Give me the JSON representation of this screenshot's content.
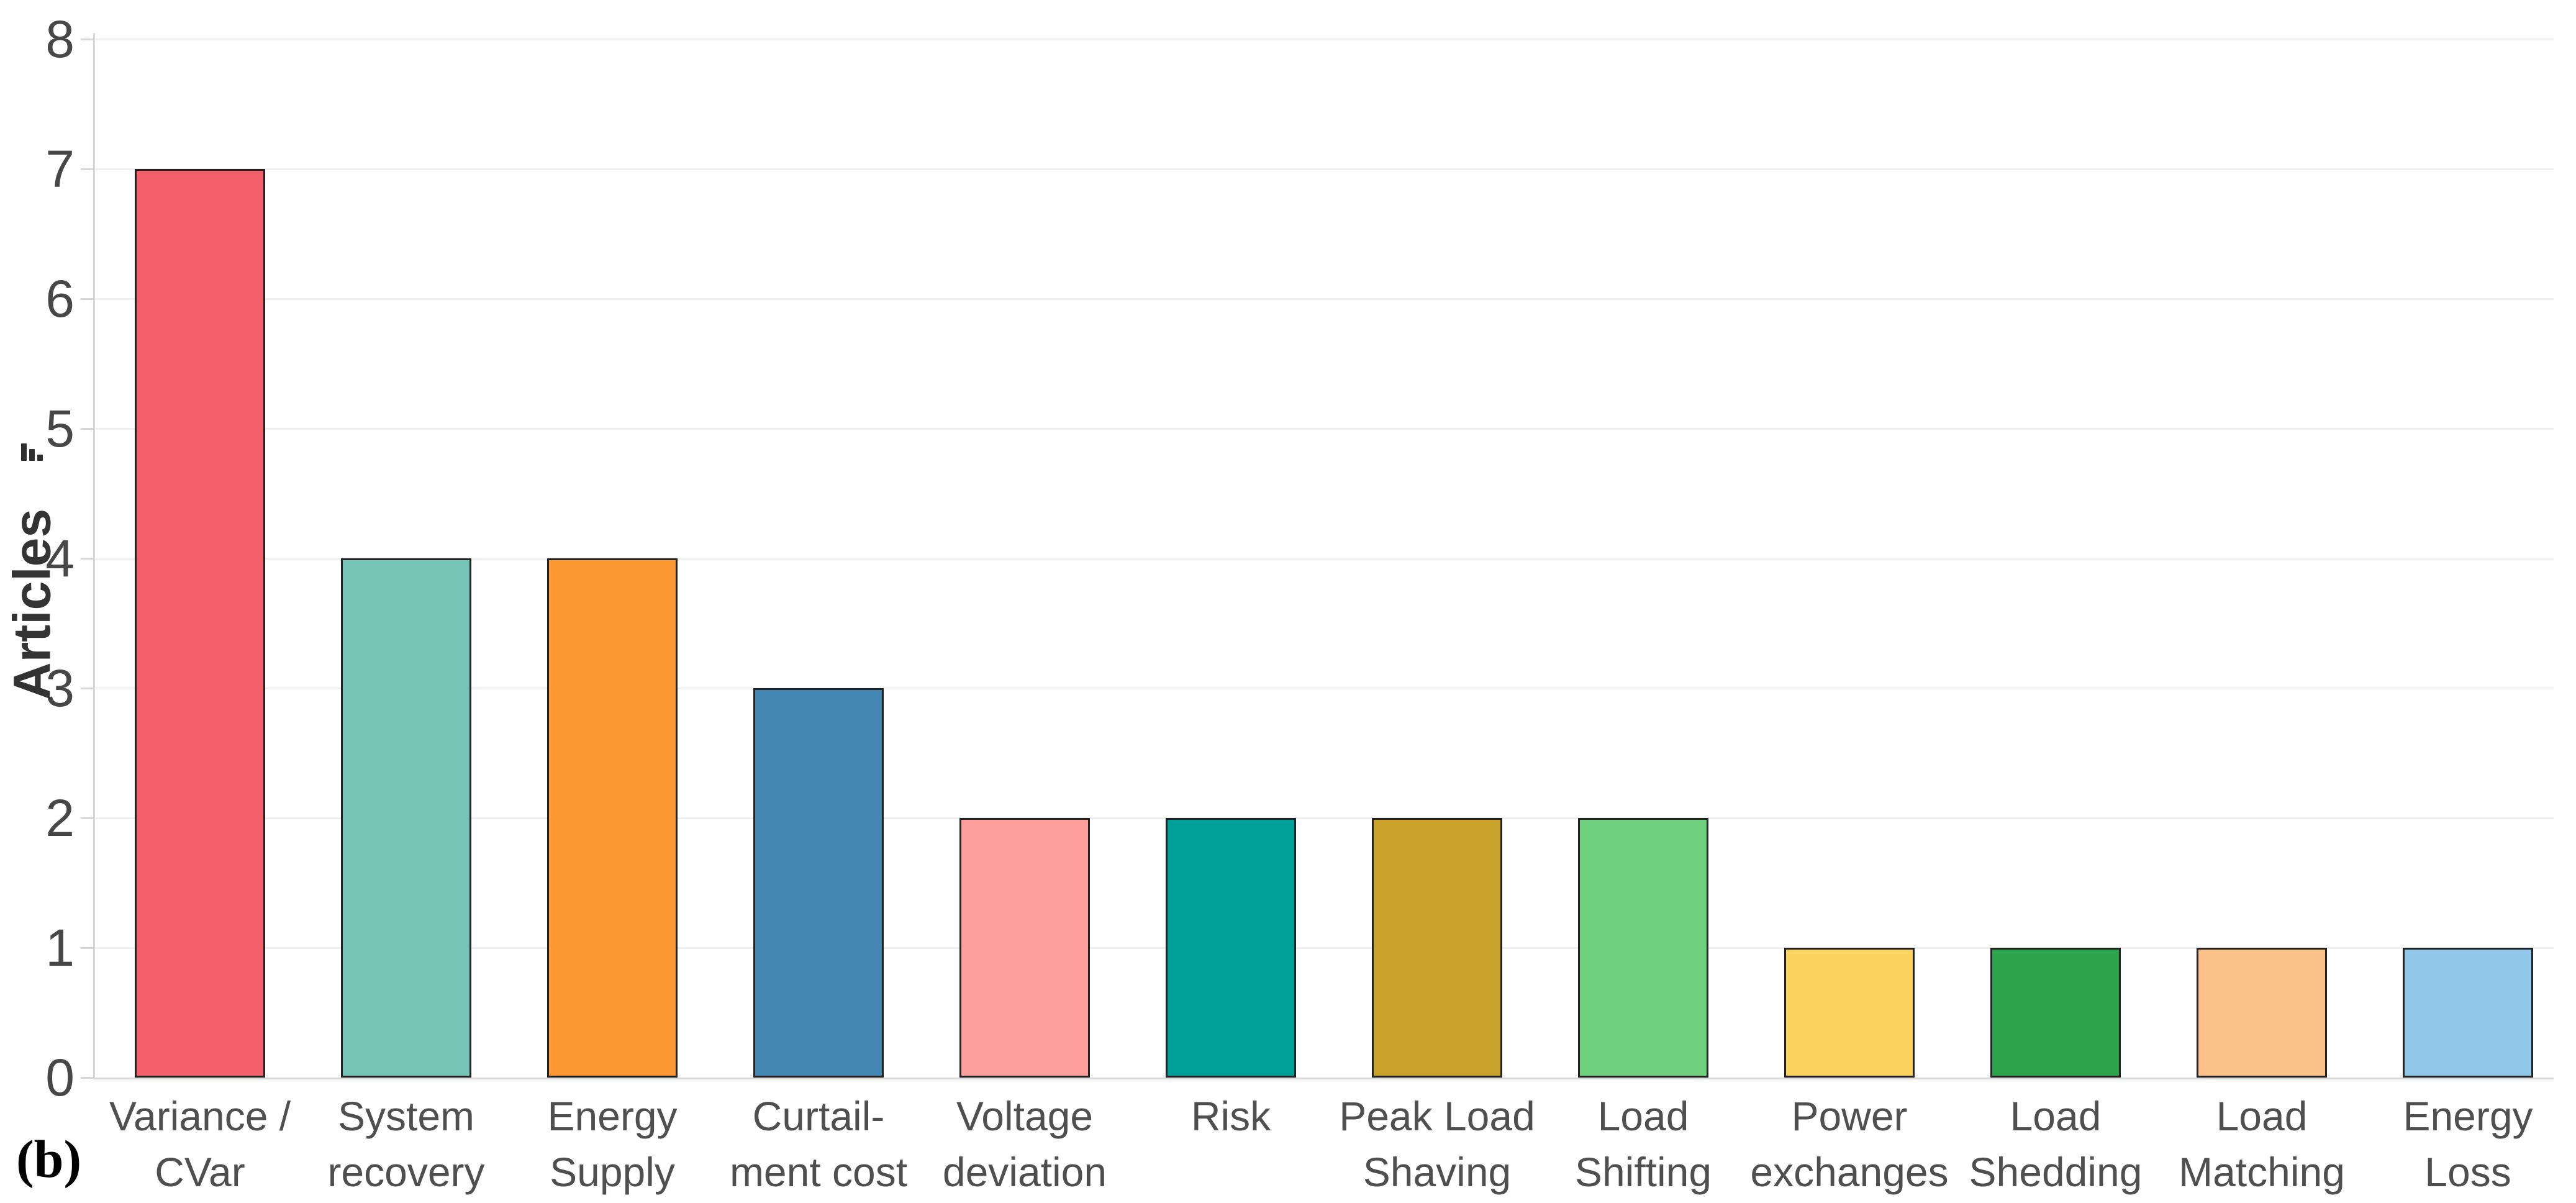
{
  "figure": {
    "panel_label": "(b)"
  },
  "chart_data": {
    "type": "bar",
    "title": "",
    "xlabel": "",
    "ylabel": "Articles",
    "ylabel_icon": "sort-descending-bars-icon",
    "categories": [
      "Variance / CVar",
      "System recovery",
      "Energy Supply",
      "Curtail-ment cost",
      "Voltage deviation",
      "Risk",
      "Peak Load Shaving",
      "Load Shifting",
      "Power exchanges",
      "Load Shedding",
      "Load Matching",
      "Energy Loss"
    ],
    "category_lines": [
      [
        "Variance /",
        "CVar"
      ],
      [
        "System",
        "recovery"
      ],
      [
        "Energy",
        "Supply"
      ],
      [
        "Curtail-",
        "ment cost"
      ],
      [
        "Voltage",
        "deviation"
      ],
      [
        "Risk"
      ],
      [
        "Peak Load",
        "Shaving"
      ],
      [
        "Load",
        "Shifting"
      ],
      [
        "Power",
        "exchanges"
      ],
      [
        "Load",
        "Shedding"
      ],
      [
        "Load",
        "Matching"
      ],
      [
        "Energy",
        "Loss"
      ]
    ],
    "values": [
      7,
      4,
      4,
      3,
      2,
      2,
      2,
      2,
      1,
      1,
      1,
      1
    ],
    "bar_colors": [
      "#f4606a",
      "#76c5b7",
      "#fb9832",
      "#4487b2",
      "#fe9f9b",
      "#00a099",
      "#c8a22b",
      "#70d27e",
      "#fbd35f",
      "#2ea44c",
      "#fbc189",
      "#91c8e9"
    ],
    "bar_border_color": "#222222",
    "ylim": [
      0,
      8
    ],
    "yticks": [
      0,
      1,
      2,
      3,
      4,
      5,
      6,
      7,
      8
    ],
    "grid": true,
    "legend": "none"
  },
  "colors": {
    "background": "#ffffff",
    "gridline": "#efefef",
    "axis_line": "#d8d8d8",
    "tick_label": "#474747",
    "category_label": "#4f4f4f",
    "ylabel_color": "#333333",
    "panel_label_color": "#000000"
  }
}
